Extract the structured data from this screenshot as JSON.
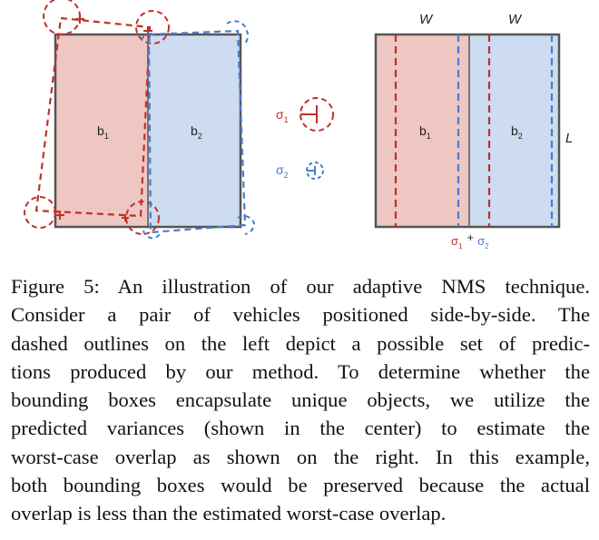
{
  "figure": {
    "left_panel": {
      "box1_label": "b",
      "box1_sub": "1",
      "box2_label": "b",
      "box2_sub": "2"
    },
    "center_panel": {
      "sigma1_label": "σ",
      "sigma1_sub": "1",
      "sigma2_label": "σ",
      "sigma2_sub": "2"
    },
    "right_panel": {
      "width_label_1": "W",
      "width_label_2": "W",
      "length_label": "L",
      "box1_label": "b",
      "box1_sub": "1",
      "box2_label": "b",
      "box2_sub": "2",
      "sum_sigma1": "σ",
      "sum_sigma1_sub": "1",
      "sum_plus": "+",
      "sum_sigma2": "σ",
      "sum_sigma2_sub": "2"
    },
    "colors": {
      "red": "#c0302a",
      "blue": "#4a7bd0",
      "red_fill": "#eec7c3",
      "blue_fill": "#cddcf0",
      "outline": "#555555"
    }
  },
  "caption": {
    "lines": [
      "Figure 5: An illustration of our adaptive NMS technique.",
      "Consider a pair of vehicles positioned side-by-side. The",
      "dashed outlines on the left depict a possible set of predic-",
      "tions produced by our method. To determine whether the",
      "bounding boxes encapsulate unique objects, we utilize the",
      "predicted variances (shown in the center) to estimate the",
      "worst-case overlap as shown on the right. In this example,",
      "both bounding boxes would be preserved because the actual",
      "overlap is less than the estimated worst-case overlap."
    ]
  }
}
